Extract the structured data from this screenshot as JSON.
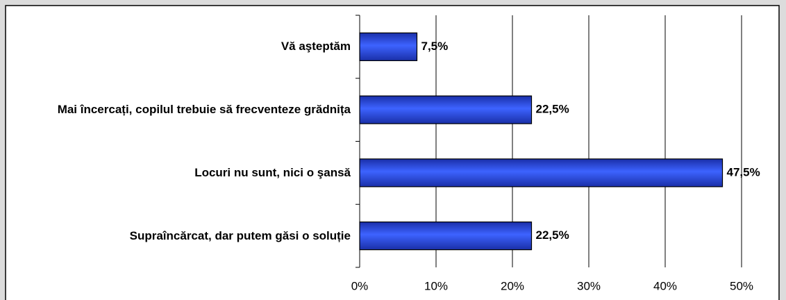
{
  "chart_data": {
    "type": "barh",
    "categories": [
      "Vă aşteptăm",
      "Mai încercați, copilul trebuie să frecventeze grădnița",
      "Locuri nu sunt, nici o şansă",
      "Supraîncărcat, dar putem găsi o soluție"
    ],
    "values": [
      7.5,
      22.5,
      47.5,
      22.5
    ],
    "value_labels": [
      "7,5%",
      "22,5%",
      "47,5%",
      "22,5%"
    ],
    "color": "#2a4ee8",
    "xlim": [
      0,
      50
    ],
    "xticks": [
      {
        "value": 0,
        "label": "0%"
      },
      {
        "value": 10,
        "label": "10%"
      },
      {
        "value": 20,
        "label": "20%"
      },
      {
        "value": 30,
        "label": "30%"
      },
      {
        "value": 40,
        "label": "40%"
      },
      {
        "value": 50,
        "label": "50%"
      }
    ],
    "grid": true
  }
}
